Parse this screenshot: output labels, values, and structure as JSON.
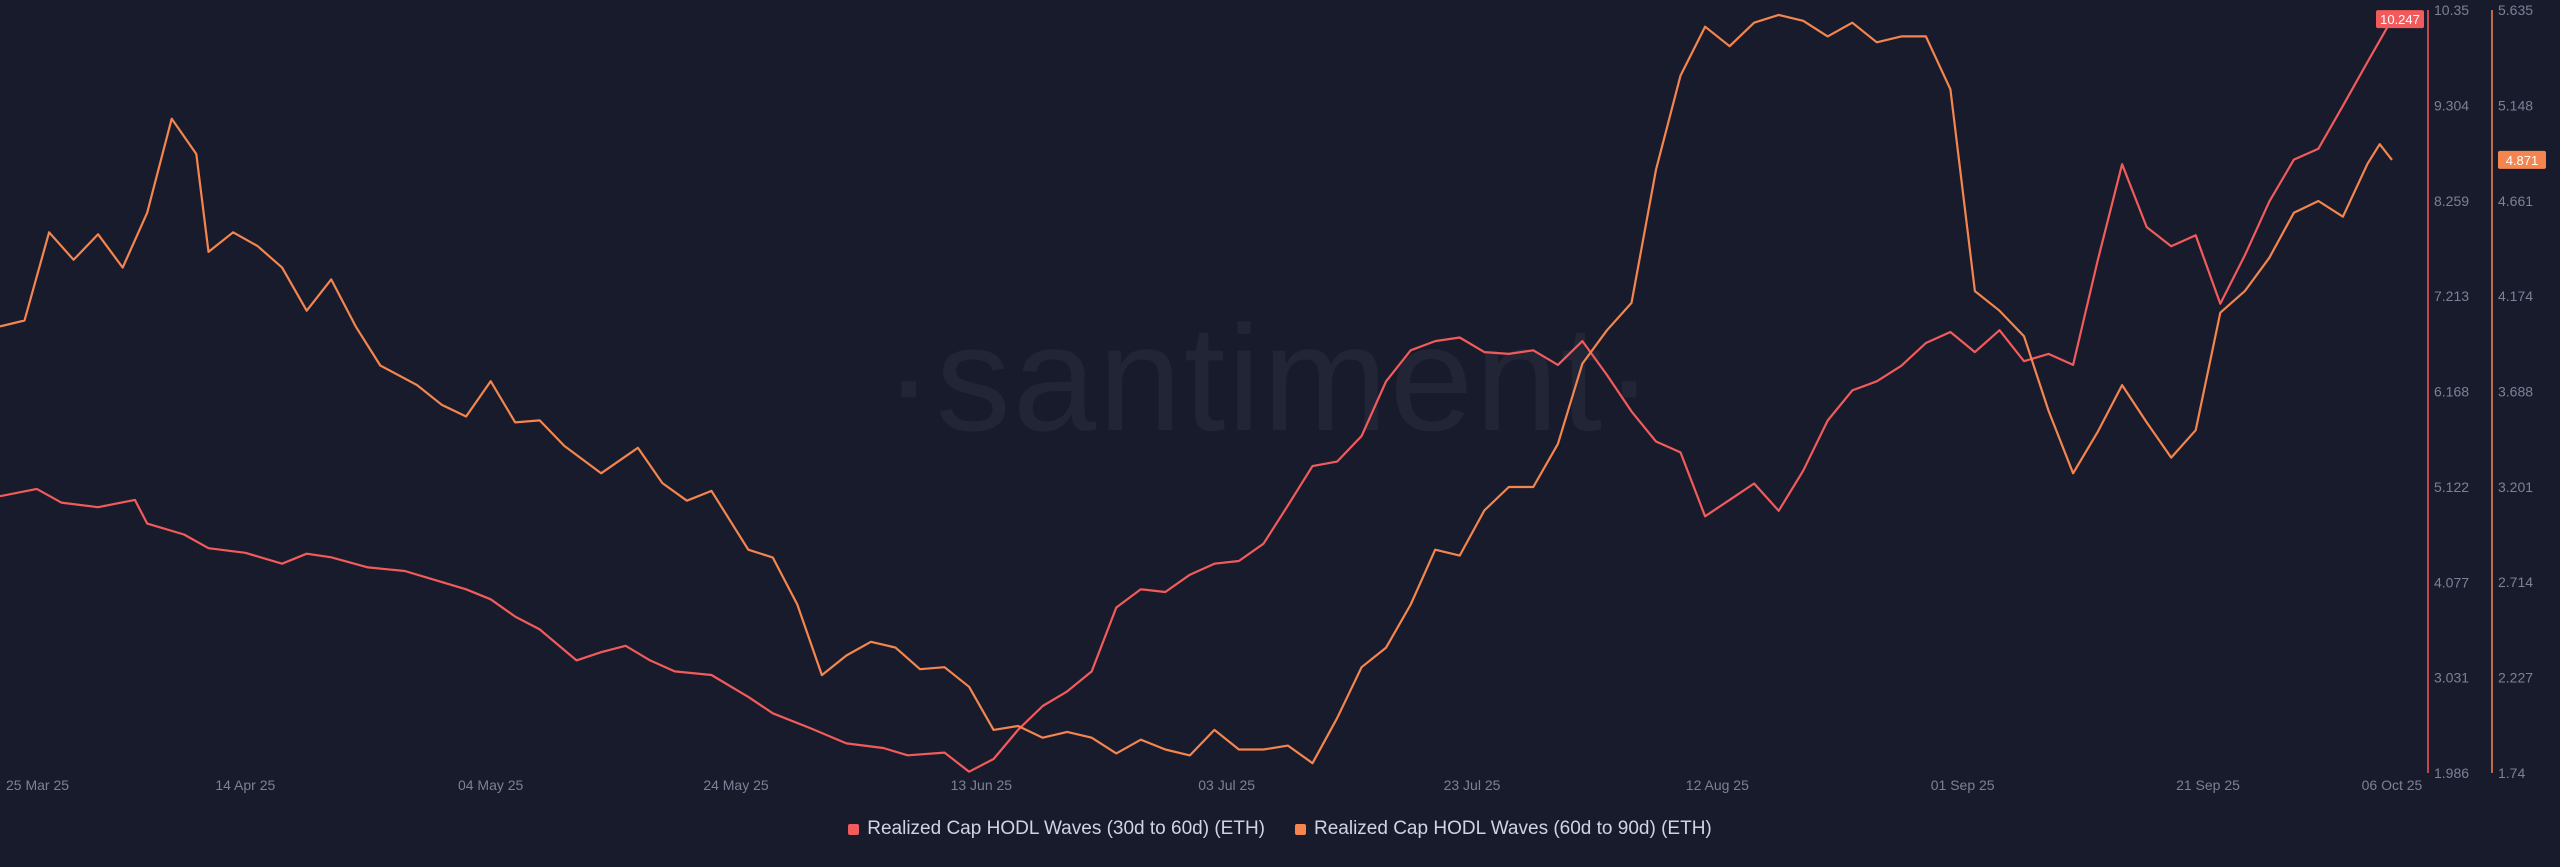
{
  "watermark": "·santiment·",
  "chart_data": {
    "type": "line",
    "x_ticks": [
      "25 Mar 25",
      "14 Apr 25",
      "04 May 25",
      "24 May 25",
      "13 Jun 25",
      "03 Jul 25",
      "23 Jul 25",
      "12 Aug 25",
      "01 Sep 25",
      "21 Sep 25",
      "06 Oct 25"
    ],
    "x_range": [
      "2025-03-25",
      "2025-10-06"
    ],
    "y_axis_left": {
      "series": "Realized Cap HODL Waves (30d to 60d) (ETH)",
      "color": "#f25b5b",
      "range": [
        1.986,
        10.35
      ],
      "ticks": [
        "1.986",
        "3.031",
        "4.077",
        "5.122",
        "6.168",
        "7.213",
        "8.259",
        "9.304",
        "10.35"
      ]
    },
    "y_axis_right": {
      "series": "Realized Cap HODL Waves (60d to 90d) (ETH)",
      "color": "#f5854e",
      "range": [
        1.74,
        5.635
      ],
      "ticks": [
        "1.74",
        "2.227",
        "2.714",
        "3.201",
        "3.688",
        "4.174",
        "4.661",
        "5.148",
        "5.635"
      ]
    },
    "last_values": {
      "series_30_60": "10.247",
      "series_60_90": "4.871"
    },
    "grid": false,
    "legend_position": "bottom-center",
    "series": [
      {
        "name": "Realized Cap HODL Waves (30d to 60d) (ETH)",
        "axis": "left",
        "color": "#f25b5b",
        "points": [
          [
            "2025-03-25",
            5.02
          ],
          [
            "2025-03-28",
            5.1
          ],
          [
            "2025-03-30",
            4.95
          ],
          [
            "2025-04-02",
            4.9
          ],
          [
            "2025-04-05",
            4.98
          ],
          [
            "2025-04-06",
            4.72
          ],
          [
            "2025-04-09",
            4.6
          ],
          [
            "2025-04-11",
            4.45
          ],
          [
            "2025-04-14",
            4.4
          ],
          [
            "2025-04-17",
            4.28
          ],
          [
            "2025-04-19",
            4.39
          ],
          [
            "2025-04-21",
            4.35
          ],
          [
            "2025-04-24",
            4.24
          ],
          [
            "2025-04-27",
            4.2
          ],
          [
            "2025-04-29",
            4.12
          ],
          [
            "2025-05-02",
            4.0
          ],
          [
            "2025-05-04",
            3.89
          ],
          [
            "2025-05-06",
            3.7
          ],
          [
            "2025-05-08",
            3.56
          ],
          [
            "2025-05-11",
            3.22
          ],
          [
            "2025-05-13",
            3.31
          ],
          [
            "2025-05-15",
            3.38
          ],
          [
            "2025-05-17",
            3.22
          ],
          [
            "2025-05-19",
            3.1
          ],
          [
            "2025-05-22",
            3.06
          ],
          [
            "2025-05-25",
            2.82
          ],
          [
            "2025-05-27",
            2.64
          ],
          [
            "2025-05-30",
            2.48
          ],
          [
            "2025-06-02",
            2.31
          ],
          [
            "2025-06-05",
            2.26
          ],
          [
            "2025-06-07",
            2.18
          ],
          [
            "2025-06-10",
            2.21
          ],
          [
            "2025-06-12",
            2.0
          ],
          [
            "2025-06-14",
            2.14
          ],
          [
            "2025-06-16",
            2.46
          ],
          [
            "2025-06-18",
            2.72
          ],
          [
            "2025-06-20",
            2.88
          ],
          [
            "2025-06-22",
            3.1
          ],
          [
            "2025-06-24",
            3.8
          ],
          [
            "2025-06-26",
            4.0
          ],
          [
            "2025-06-28",
            3.97
          ],
          [
            "2025-06-30",
            4.16
          ],
          [
            "2025-07-02",
            4.28
          ],
          [
            "2025-07-04",
            4.31
          ],
          [
            "2025-07-06",
            4.5
          ],
          [
            "2025-07-08",
            4.92
          ],
          [
            "2025-07-10",
            5.35
          ],
          [
            "2025-07-12",
            5.4
          ],
          [
            "2025-07-14",
            5.68
          ],
          [
            "2025-07-16",
            6.28
          ],
          [
            "2025-07-18",
            6.62
          ],
          [
            "2025-07-20",
            6.72
          ],
          [
            "2025-07-22",
            6.76
          ],
          [
            "2025-07-24",
            6.6
          ],
          [
            "2025-07-26",
            6.58
          ],
          [
            "2025-07-28",
            6.62
          ],
          [
            "2025-07-30",
            6.46
          ],
          [
            "2025-08-01",
            6.72
          ],
          [
            "2025-08-03",
            6.35
          ],
          [
            "2025-08-05",
            5.95
          ],
          [
            "2025-08-07",
            5.62
          ],
          [
            "2025-08-09",
            5.5
          ],
          [
            "2025-08-11",
            4.8
          ],
          [
            "2025-08-13",
            4.98
          ],
          [
            "2025-08-15",
            5.16
          ],
          [
            "2025-08-17",
            4.86
          ],
          [
            "2025-08-19",
            5.3
          ],
          [
            "2025-08-21",
            5.85
          ],
          [
            "2025-08-23",
            6.18
          ],
          [
            "2025-08-25",
            6.28
          ],
          [
            "2025-08-27",
            6.45
          ],
          [
            "2025-08-29",
            6.7
          ],
          [
            "2025-08-31",
            6.82
          ],
          [
            "2025-09-02",
            6.6
          ],
          [
            "2025-09-04",
            6.84
          ],
          [
            "2025-09-06",
            6.5
          ],
          [
            "2025-09-08",
            6.58
          ],
          [
            "2025-09-10",
            6.46
          ],
          [
            "2025-09-12",
            7.6
          ],
          [
            "2025-09-14",
            8.66
          ],
          [
            "2025-09-16",
            7.97
          ],
          [
            "2025-09-18",
            7.76
          ],
          [
            "2025-09-20",
            7.88
          ],
          [
            "2025-09-22",
            7.13
          ],
          [
            "2025-09-24",
            7.66
          ],
          [
            "2025-09-26",
            8.25
          ],
          [
            "2025-09-28",
            8.71
          ],
          [
            "2025-09-30",
            8.83
          ],
          [
            "2025-10-02",
            9.3
          ],
          [
            "2025-10-04",
            9.78
          ],
          [
            "2025-10-06",
            10.25
          ]
        ]
      },
      {
        "name": "Realized Cap HODL Waves (60d to 90d) (ETH)",
        "axis": "right",
        "color": "#f5854e",
        "points": [
          [
            "2025-03-25",
            4.02
          ],
          [
            "2025-03-27",
            4.05
          ],
          [
            "2025-03-29",
            4.5
          ],
          [
            "2025-03-31",
            4.36
          ],
          [
            "2025-04-02",
            4.49
          ],
          [
            "2025-04-04",
            4.32
          ],
          [
            "2025-04-06",
            4.6
          ],
          [
            "2025-04-08",
            5.08
          ],
          [
            "2025-04-10",
            4.9
          ],
          [
            "2025-04-11",
            4.4
          ],
          [
            "2025-04-13",
            4.5
          ],
          [
            "2025-04-15",
            4.43
          ],
          [
            "2025-04-17",
            4.32
          ],
          [
            "2025-04-19",
            4.1
          ],
          [
            "2025-04-21",
            4.26
          ],
          [
            "2025-04-23",
            4.02
          ],
          [
            "2025-04-25",
            3.82
          ],
          [
            "2025-04-28",
            3.72
          ],
          [
            "2025-04-30",
            3.62
          ],
          [
            "2025-05-02",
            3.56
          ],
          [
            "2025-05-04",
            3.74
          ],
          [
            "2025-05-06",
            3.53
          ],
          [
            "2025-05-08",
            3.54
          ],
          [
            "2025-05-10",
            3.41
          ],
          [
            "2025-05-13",
            3.27
          ],
          [
            "2025-05-16",
            3.4
          ],
          [
            "2025-05-18",
            3.22
          ],
          [
            "2025-05-20",
            3.13
          ],
          [
            "2025-05-22",
            3.18
          ],
          [
            "2025-05-25",
            2.88
          ],
          [
            "2025-05-27",
            2.84
          ],
          [
            "2025-05-29",
            2.6
          ],
          [
            "2025-05-31",
            2.24
          ],
          [
            "2025-06-02",
            2.34
          ],
          [
            "2025-06-04",
            2.41
          ],
          [
            "2025-06-06",
            2.38
          ],
          [
            "2025-06-08",
            2.27
          ],
          [
            "2025-06-10",
            2.28
          ],
          [
            "2025-06-12",
            2.18
          ],
          [
            "2025-06-14",
            1.96
          ],
          [
            "2025-06-16",
            1.98
          ],
          [
            "2025-06-18",
            1.92
          ],
          [
            "2025-06-20",
            1.95
          ],
          [
            "2025-06-22",
            1.92
          ],
          [
            "2025-06-24",
            1.84
          ],
          [
            "2025-06-26",
            1.91
          ],
          [
            "2025-06-28",
            1.86
          ],
          [
            "2025-06-30",
            1.83
          ],
          [
            "2025-07-02",
            1.96
          ],
          [
            "2025-07-04",
            1.86
          ],
          [
            "2025-07-06",
            1.86
          ],
          [
            "2025-07-08",
            1.88
          ],
          [
            "2025-07-10",
            1.79
          ],
          [
            "2025-07-12",
            2.02
          ],
          [
            "2025-07-14",
            2.28
          ],
          [
            "2025-07-16",
            2.38
          ],
          [
            "2025-07-18",
            2.6
          ],
          [
            "2025-07-20",
            2.88
          ],
          [
            "2025-07-22",
            2.85
          ],
          [
            "2025-07-24",
            3.08
          ],
          [
            "2025-07-26",
            3.2
          ],
          [
            "2025-07-28",
            3.2
          ],
          [
            "2025-07-30",
            3.42
          ],
          [
            "2025-08-01",
            3.83
          ],
          [
            "2025-08-03",
            4.0
          ],
          [
            "2025-08-05",
            4.14
          ],
          [
            "2025-08-07",
            4.82
          ],
          [
            "2025-08-09",
            5.3
          ],
          [
            "2025-08-11",
            5.55
          ],
          [
            "2025-08-13",
            5.45
          ],
          [
            "2025-08-15",
            5.57
          ],
          [
            "2025-08-17",
            5.61
          ],
          [
            "2025-08-19",
            5.58
          ],
          [
            "2025-08-21",
            5.5
          ],
          [
            "2025-08-23",
            5.57
          ],
          [
            "2025-08-25",
            5.47
          ],
          [
            "2025-08-27",
            5.5
          ],
          [
            "2025-08-29",
            5.5
          ],
          [
            "2025-08-31",
            5.23
          ],
          [
            "2025-09-02",
            4.2
          ],
          [
            "2025-09-04",
            4.1
          ],
          [
            "2025-09-06",
            3.97
          ],
          [
            "2025-09-08",
            3.59
          ],
          [
            "2025-09-10",
            3.27
          ],
          [
            "2025-09-12",
            3.48
          ],
          [
            "2025-09-14",
            3.72
          ],
          [
            "2025-09-16",
            3.53
          ],
          [
            "2025-09-18",
            3.35
          ],
          [
            "2025-09-20",
            3.49
          ],
          [
            "2025-09-22",
            4.09
          ],
          [
            "2025-09-24",
            4.2
          ],
          [
            "2025-09-26",
            4.37
          ],
          [
            "2025-09-28",
            4.6
          ],
          [
            "2025-09-30",
            4.66
          ],
          [
            "2025-10-02",
            4.58
          ],
          [
            "2025-10-04",
            4.85
          ],
          [
            "2025-10-05",
            4.95
          ],
          [
            "2025-10-06",
            4.87
          ]
        ]
      }
    ]
  }
}
